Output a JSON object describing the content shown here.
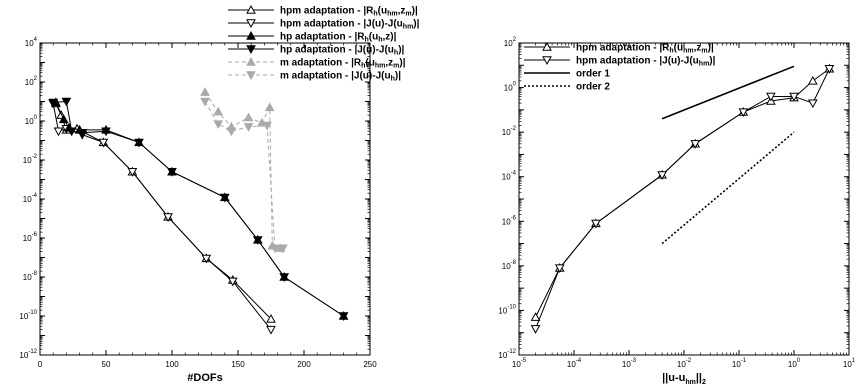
{
  "chart_data": [
    {
      "type": "line",
      "xlabel": "#DOFs",
      "ylabel": "",
      "xscale": "linear",
      "yscale": "log",
      "xlim": [
        0,
        250
      ],
      "ylim": [
        1e-12,
        10000
      ],
      "x_ticks": [
        "0",
        "50",
        "100",
        "150",
        "200",
        "250"
      ],
      "y_ticks": [
        {
          "base": "10",
          "exp": "-12"
        },
        {
          "base": "10",
          "exp": "-10"
        },
        {
          "base": "10",
          "exp": "-8"
        },
        {
          "base": "10",
          "exp": "-6"
        },
        {
          "base": "10",
          "exp": "-4"
        },
        {
          "base": "10",
          "exp": "-2"
        },
        {
          "base": "10",
          "exp": "0"
        },
        {
          "base": "10",
          "exp": "2"
        },
        {
          "base": "10",
          "exp": "4"
        }
      ],
      "legend_position": "top-right",
      "series": [
        {
          "name": "hpm adaptation - |R_h(u_hm,z_m)|",
          "legend": {
            "pre": "hpm adaptation - |R",
            "s1": "h",
            "mid1": "(u",
            "s2": "hm",
            "mid2": ",z",
            "s3": "m",
            "post": ")|"
          },
          "color": "#000000",
          "dash": "solid",
          "marker": "triangle-up-open",
          "points": [
            [
              12,
              8
            ],
            [
              16,
              2
            ],
            [
              20,
              0.35
            ],
            [
              28,
              0.4
            ],
            [
              48,
              0.08
            ],
            [
              70,
              0.0025
            ],
            [
              97,
              1.2e-05
            ],
            [
              126,
              9e-08
            ],
            [
              146,
              7e-09
            ],
            [
              175,
              7e-11
            ]
          ]
        },
        {
          "name": "hpm adaptation - |J(u)-J(u_hm)|",
          "legend": {
            "pre": "hpm adaptation - |J(u)-J(u",
            "s1": "hm",
            "mid1": ")|",
            "s2": "",
            "mid2": "",
            "s3": "",
            "post": ""
          },
          "color": "#000000",
          "dash": "solid",
          "marker": "triangle-down-open",
          "points": [
            [
              10,
              8
            ],
            [
              14,
              0.3
            ],
            [
              20,
              0.4
            ],
            [
              32,
              0.2
            ],
            [
              48,
              0.08
            ],
            [
              70,
              0.0025
            ],
            [
              97,
              1.2e-05
            ],
            [
              126,
              9e-08
            ],
            [
              146,
              6e-09
            ],
            [
              175,
              2e-11
            ]
          ]
        },
        {
          "name": "hp adaptation - |R_h(u_h,z)|",
          "legend": {
            "pre": "hp adaptation - |R",
            "s1": "h",
            "mid1": "(u",
            "s2": "h",
            "mid2": ",z)|",
            "s3": "",
            "post": ""
          },
          "color": "#000000",
          "dash": "solid",
          "marker": "triangle-up-filled",
          "points": [
            [
              12,
              9
            ],
            [
              18,
              1.2
            ],
            [
              22,
              0.45
            ],
            [
              30,
              0.35
            ],
            [
              50,
              0.35
            ],
            [
              75,
              0.08
            ],
            [
              100,
              0.0025
            ],
            [
              140,
              0.00012
            ],
            [
              165,
              8e-07
            ],
            [
              185,
              1e-08
            ],
            [
              230,
              1e-10
            ]
          ]
        },
        {
          "name": "hp adaptation - |J(u)-J(u_h)|",
          "legend": {
            "pre": "hp adaptation - |J(u)-J(u",
            "s1": "h",
            "mid1": ")|",
            "s2": "",
            "mid2": "",
            "s3": "",
            "post": ""
          },
          "color": "#000000",
          "dash": "solid",
          "marker": "triangle-down-filled",
          "points": [
            [
              10,
              9
            ],
            [
              20,
              10
            ],
            [
              24,
              0.3
            ],
            [
              32,
              0.25
            ],
            [
              50,
              0.3
            ],
            [
              75,
              0.08
            ],
            [
              100,
              0.0025
            ],
            [
              140,
              0.00012
            ],
            [
              165,
              8e-07
            ],
            [
              185,
              1e-08
            ],
            [
              230,
              1e-10
            ]
          ]
        },
        {
          "name": "m adaptation - |R_h(u_hm,z_m)|",
          "legend": {
            "pre": "m adaptation - |R",
            "s1": "h",
            "mid1": "(u",
            "s2": "hm",
            "mid2": ",z",
            "s3": "m",
            "post": ")|"
          },
          "color": "#aaaaaa",
          "dash": "dashed",
          "marker": "triangle-up-filled",
          "points": [
            [
              125,
              30
            ],
            [
              135,
              3
            ],
            [
              145,
              0.5
            ],
            [
              158,
              1.5
            ],
            [
              168,
              0.8
            ],
            [
              174,
              5
            ],
            [
              176,
              4e-07
            ],
            [
              182,
              3e-07
            ]
          ]
        },
        {
          "name": "m adaptation - |J(u)-J(u_h)|",
          "legend": {
            "pre": "m adaptation - |J(u)-J(u",
            "s1": "h",
            "mid1": ")|",
            "s2": "",
            "mid2": "",
            "s3": "",
            "post": ""
          },
          "color": "#aaaaaa",
          "dash": "dashed",
          "marker": "triangle-down-filled",
          "points": [
            [
              125,
              10
            ],
            [
              135,
              0.7
            ],
            [
              145,
              0.3
            ],
            [
              158,
              0.5
            ],
            [
              172,
              0.6
            ],
            [
              178,
              3e-07
            ],
            [
              184,
              3e-07
            ]
          ]
        }
      ]
    },
    {
      "type": "line",
      "xlabel": "||u-u_hm||_2",
      "xlabel_parts": {
        "pre": "||u-u",
        "s1": "hm",
        "mid1": "||",
        "s2": "2"
      },
      "ylabel": "",
      "xscale": "log",
      "yscale": "log",
      "xlim": [
        1e-05,
        10
      ],
      "ylim": [
        1e-12,
        100
      ],
      "x_ticks": [
        {
          "base": "10",
          "exp": "-5"
        },
        {
          "base": "10",
          "exp": "-4"
        },
        {
          "base": "10",
          "exp": "-3"
        },
        {
          "base": "10",
          "exp": "-2"
        },
        {
          "base": "10",
          "exp": "-1"
        },
        {
          "base": "10",
          "exp": "0"
        },
        {
          "base": "10",
          "exp": "1"
        }
      ],
      "y_ticks": [
        {
          "base": "10",
          "exp": "-12"
        },
        {
          "base": "10",
          "exp": "-10"
        },
        {
          "base": "10",
          "exp": "-8"
        },
        {
          "base": "10",
          "exp": "-6"
        },
        {
          "base": "10",
          "exp": "-4"
        },
        {
          "base": "10",
          "exp": "-2"
        },
        {
          "base": "10",
          "exp": "0"
        },
        {
          "base": "10",
          "exp": "2"
        }
      ],
      "legend_position": "top-left",
      "series": [
        {
          "name": "hpm adaptation - |R_h(u_hm,z_m)|",
          "legend": {
            "pre": "hpm adaptation - |R",
            "s1": "h",
            "mid1": "(u",
            "s2": "hm",
            "mid2": ",z",
            "s3": "m",
            "post": ")|"
          },
          "color": "#000000",
          "dash": "solid",
          "marker": "triangle-up-open",
          "points": [
            [
              2e-05,
              5e-11
            ],
            [
              5.5e-05,
              8e-09
            ],
            [
              0.00025,
              8e-07
            ],
            [
              0.004,
              0.00012
            ],
            [
              0.016,
              0.003
            ],
            [
              0.12,
              0.08
            ],
            [
              0.38,
              0.25
            ],
            [
              1,
              0.35
            ],
            [
              2.2,
              2
            ],
            [
              4.4,
              7
            ]
          ]
        },
        {
          "name": "hpm adaptation - |J(u)-J(u_hm)|",
          "legend": {
            "pre": "hpm adaptation - |J(u)-J(u",
            "s1": "hm",
            "mid1": ")|",
            "s2": "",
            "mid2": "",
            "s3": "",
            "post": ""
          },
          "color": "#000000",
          "dash": "solid",
          "marker": "triangle-down-open",
          "points": [
            [
              2e-05,
              1.5e-11
            ],
            [
              5.5e-05,
              8e-09
            ],
            [
              0.00025,
              8e-07
            ],
            [
              0.004,
              0.00012
            ],
            [
              0.016,
              0.003
            ],
            [
              0.12,
              0.08
            ],
            [
              0.38,
              0.4
            ],
            [
              1,
              0.4
            ],
            [
              2.2,
              0.2
            ],
            [
              4.4,
              7
            ]
          ]
        },
        {
          "name": "order 1",
          "legend": {
            "pre": "order 1",
            "s1": "",
            "mid1": "",
            "s2": "",
            "mid2": "",
            "s3": "",
            "post": ""
          },
          "color": "#000000",
          "dash": "solid",
          "marker": "none",
          "points": [
            [
              0.004,
              0.04
            ],
            [
              1,
              9
            ]
          ]
        },
        {
          "name": "order 2",
          "legend": {
            "pre": "order 2",
            "s1": "",
            "mid1": "",
            "s2": "",
            "mid2": "",
            "s3": "",
            "post": ""
          },
          "color": "#000000",
          "dash": "dotted",
          "marker": "none",
          "points": [
            [
              0.004,
              1e-07
            ],
            [
              1,
              0.01
            ]
          ]
        }
      ]
    }
  ]
}
